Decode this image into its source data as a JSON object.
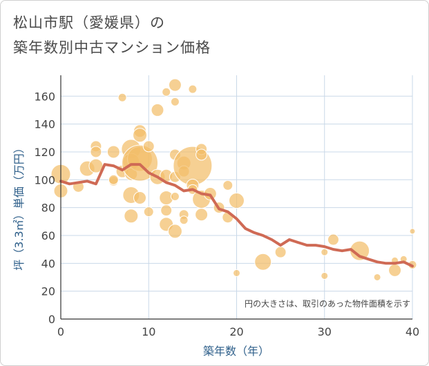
{
  "chart_data": {
    "type": "scatter+line",
    "title_line1": "松山市駅（愛媛県）の",
    "title_line2": "築年数別中古マンション価格",
    "xlabel": "築年数（年）",
    "ylabel": "坪（3.3㎡）単価（万円）",
    "xlim": [
      0,
      40
    ],
    "ylim": [
      0,
      175
    ],
    "x_ticks": [
      0,
      10,
      20,
      30,
      40
    ],
    "y_ticks": [
      0,
      20,
      40,
      60,
      80,
      100,
      120,
      140,
      160
    ],
    "grid": true,
    "note": "円の大きさは、取引のあった物件面積を示す",
    "colors": {
      "bubble": "#f3be6a",
      "line": "#cf6a55",
      "grid": "#c9d8e8",
      "axis": "#333333"
    },
    "series": [
      {
        "name": "average",
        "type": "line",
        "x": [
          0,
          1,
          2,
          3,
          4,
          5,
          6,
          7,
          8,
          9,
          10,
          11,
          12,
          13,
          14,
          15,
          16,
          17,
          18,
          19,
          20,
          21,
          22,
          23,
          24,
          25,
          26,
          27,
          28,
          29,
          30,
          31,
          32,
          33,
          34,
          35,
          36,
          37,
          38,
          39,
          40
        ],
        "y": [
          99,
          97,
          98,
          99,
          97,
          111,
          110,
          107,
          111,
          111,
          105,
          102,
          98,
          96,
          92,
          93,
          90,
          89,
          79,
          77,
          72,
          65,
          62,
          60,
          57,
          53,
          57,
          55,
          53,
          53,
          52,
          50,
          49,
          50,
          45,
          43,
          41,
          40,
          40,
          41,
          38
        ]
      },
      {
        "name": "transactions",
        "type": "scatter",
        "x": [
          0,
          0,
          2,
          3,
          4,
          4,
          4,
          6,
          6,
          6,
          7,
          7,
          8,
          8,
          8,
          8,
          8,
          9,
          9,
          9,
          9,
          9,
          10,
          10,
          11,
          11,
          12,
          12,
          12,
          12,
          12,
          13,
          13,
          13,
          13,
          13,
          13,
          14,
          14,
          14,
          14,
          15,
          15,
          15,
          15,
          16,
          16,
          16,
          16,
          17,
          18,
          19,
          19,
          20,
          20,
          23,
          25,
          30,
          30,
          31,
          34,
          36,
          38,
          38,
          39,
          40,
          40
        ],
        "y": [
          104,
          92,
          95,
          108,
          124,
          120,
          110,
          120,
          99,
          100,
          159,
          106,
          122,
          113,
          104,
          89,
          74,
          135,
          132,
          115,
          112,
          87,
          124,
          77,
          150,
          102,
          163,
          103,
          87,
          78,
          68,
          168,
          156,
          118,
          102,
          63,
          88,
          112,
          106,
          75,
          71,
          165,
          110,
          96,
          93,
          122,
          118,
          86,
          75,
          90,
          80,
          96,
          73,
          85,
          33,
          41,
          48,
          48,
          31,
          57,
          49,
          30,
          42,
          35,
          43,
          63,
          39
        ],
        "size": [
          14,
          10,
          8,
          11,
          8,
          8,
          10,
          9,
          7,
          7,
          6,
          9,
          14,
          12,
          9,
          12,
          10,
          9,
          10,
          18,
          26,
          9,
          8,
          7,
          9,
          11,
          6,
          9,
          10,
          8,
          10,
          9,
          6,
          8,
          8,
          10,
          6,
          10,
          8,
          7,
          6,
          6,
          28,
          9,
          7,
          8,
          8,
          13,
          9,
          9,
          8,
          7,
          8,
          11,
          5,
          12,
          8,
          5,
          5,
          8,
          14,
          5,
          5,
          9,
          5,
          4,
          6
        ]
      }
    ]
  }
}
